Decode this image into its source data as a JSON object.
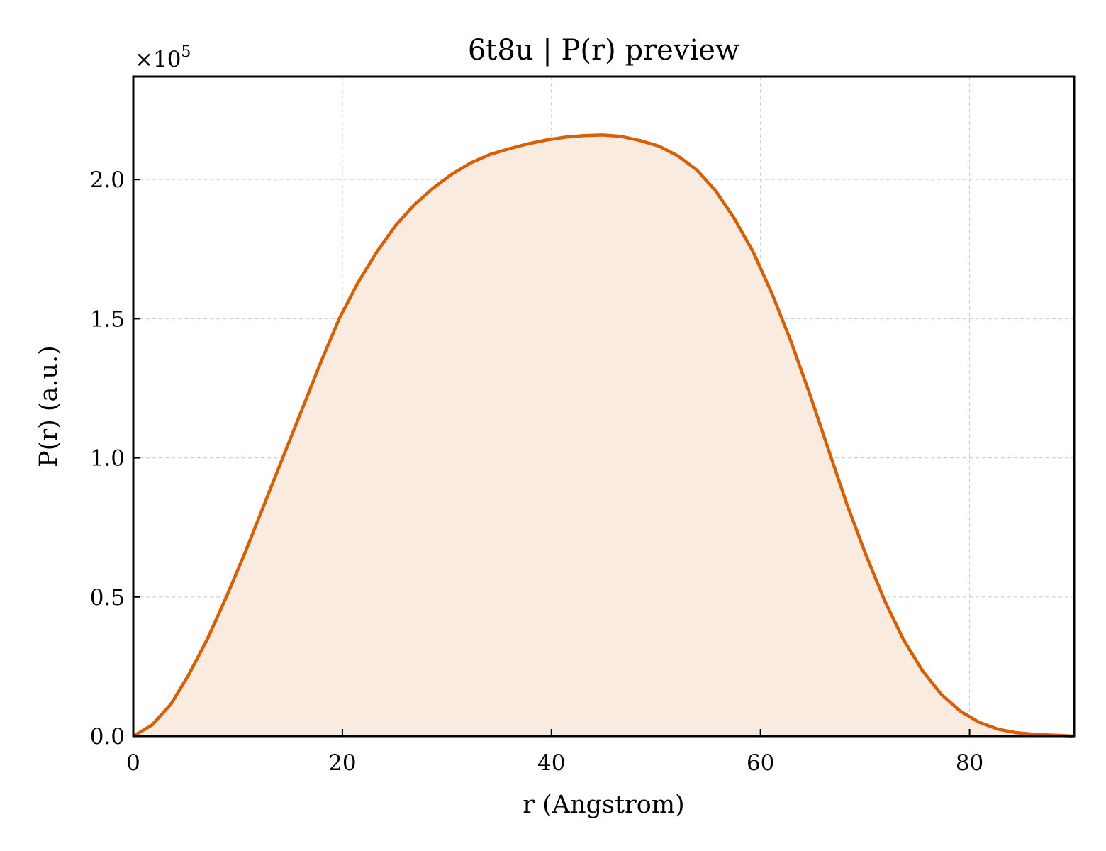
{
  "chart_data": {
    "type": "area",
    "title": "6t8u | P(r) preview",
    "xlabel": "r (Angstrom)",
    "ylabel": "P(r) (a.u.)",
    "y_multiplier": "×10",
    "y_multiplier_exp": "5",
    "xlim": [
      0,
      90
    ],
    "ylim": [
      0,
      2.37
    ],
    "xticks": [
      0,
      20,
      40,
      60,
      80
    ],
    "xtick_labels": [
      "0",
      "20",
      "40",
      "60",
      "80"
    ],
    "yticks": [
      0,
      0.5,
      1.0,
      1.5,
      2.0
    ],
    "ytick_labels": [
      "0.0",
      "0.5",
      "1.0",
      "1.5",
      "2.0"
    ],
    "grid": true,
    "line_color": "#d95f02",
    "fill_color": "#f9ebe0",
    "series": [
      {
        "x": [
          0,
          1.8,
          3.6,
          5.3,
          7.1,
          8.9,
          10.7,
          12.5,
          14.3,
          16.1,
          17.9,
          19.7,
          21.5,
          23.3,
          25.1,
          26.9,
          28.7,
          30.5,
          32.3,
          34.1,
          35.9,
          37.7,
          39.5,
          41.3,
          43.1,
          44.9,
          46.7,
          48.5,
          50.3,
          52.1,
          53.9,
          55.7,
          57.5,
          59.3,
          61.1,
          62.9,
          64.7,
          66.5,
          68.3,
          70.1,
          71.9,
          73.7,
          75.5,
          77.3,
          79.1,
          80.9,
          82.7,
          84.5,
          86.3,
          88.1,
          90.0
        ],
        "y": [
          0.0,
          0.04,
          0.115,
          0.22,
          0.35,
          0.5,
          0.66,
          0.83,
          1.0,
          1.17,
          1.34,
          1.5,
          1.63,
          1.74,
          1.835,
          1.91,
          1.97,
          2.02,
          2.06,
          2.09,
          2.11,
          2.128,
          2.142,
          2.152,
          2.158,
          2.16,
          2.155,
          2.14,
          2.12,
          2.085,
          2.035,
          1.96,
          1.86,
          1.74,
          1.59,
          1.42,
          1.23,
          1.03,
          0.83,
          0.65,
          0.485,
          0.345,
          0.235,
          0.15,
          0.09,
          0.05,
          0.025,
          0.012,
          0.006,
          0.003,
          0.0
        ]
      }
    ]
  }
}
